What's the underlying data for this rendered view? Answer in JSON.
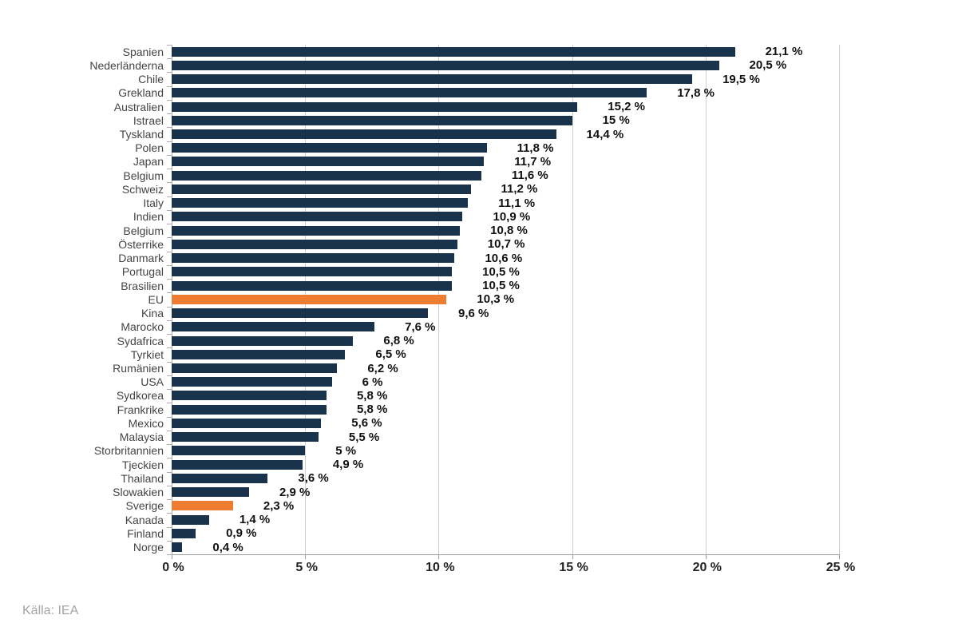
{
  "source": "Källa: IEA",
  "colors": {
    "bar": "#1a334d",
    "highlight": "#ee7d31",
    "gridline": "#cfcfcf",
    "axis": "#9c9c9c"
  },
  "chart_data": {
    "type": "bar",
    "orientation": "horizontal",
    "title": "",
    "xlabel": "",
    "ylabel": "",
    "xlim": [
      0,
      25
    ],
    "grid": true,
    "x_ticks": [
      "0 %",
      "5 %",
      "10 %",
      "15 %",
      "20 %",
      "25 %"
    ],
    "x_tick_values": [
      0,
      5,
      10,
      15,
      20,
      25
    ],
    "categories": [
      "Spanien",
      "Nederländerna",
      "Chile",
      "Grekland",
      "Australien",
      "Istrael",
      "Tyskland",
      "Polen",
      "Japan",
      "Belgium",
      "Schweiz",
      "Italy",
      "Indien",
      "Belgium",
      "Österrike",
      "Danmark",
      "Portugal",
      "Brasilien",
      "EU",
      "Kina",
      "Marocko",
      "Sydafrica",
      "Tyrkiet",
      "Rumänien",
      "USA",
      "Sydkorea",
      "Frankrike",
      "Mexico",
      "Malaysia",
      "Storbritannien",
      "Tjeckien",
      "Thailand",
      "Slowakien",
      "Sverige",
      "Kanada",
      "Finland",
      "Norge"
    ],
    "values": [
      21.1,
      20.5,
      19.5,
      17.8,
      15.2,
      15,
      14.4,
      11.8,
      11.7,
      11.6,
      11.2,
      11.1,
      10.9,
      10.8,
      10.7,
      10.6,
      10.5,
      10.5,
      10.3,
      9.6,
      7.6,
      6.8,
      6.5,
      6.2,
      6,
      5.8,
      5.8,
      5.6,
      5.5,
      5,
      4.9,
      3.6,
      2.9,
      2.3,
      1.4,
      0.9,
      0.4
    ],
    "value_labels": [
      "21,1 %",
      "20,5 %",
      "19,5 %",
      "17,8 %",
      "15,2 %",
      "15 %",
      "14,4 %",
      "11,8 %",
      "11,7 %",
      "11,6 %",
      "11,2 %",
      "11,1 %",
      "10,9 %",
      "10,8 %",
      "10,7 %",
      "10,6 %",
      "10,5 %",
      "10,5 %",
      "10,3 %",
      "9,6 %",
      "7,6 %",
      "6,8 %",
      "6,5 %",
      "6,2 %",
      "6 %",
      "5,8 %",
      "5,8 %",
      "5,6 %",
      "5,5 %",
      "5 %",
      "4,9 %",
      "3,6 %",
      "2,9 %",
      "2,3 %",
      "1,4 %",
      "0,9 %",
      "0,4 %"
    ],
    "highlighted_categories": [
      "EU",
      "Sverige"
    ],
    "highlight_indices": [
      18,
      33
    ]
  }
}
